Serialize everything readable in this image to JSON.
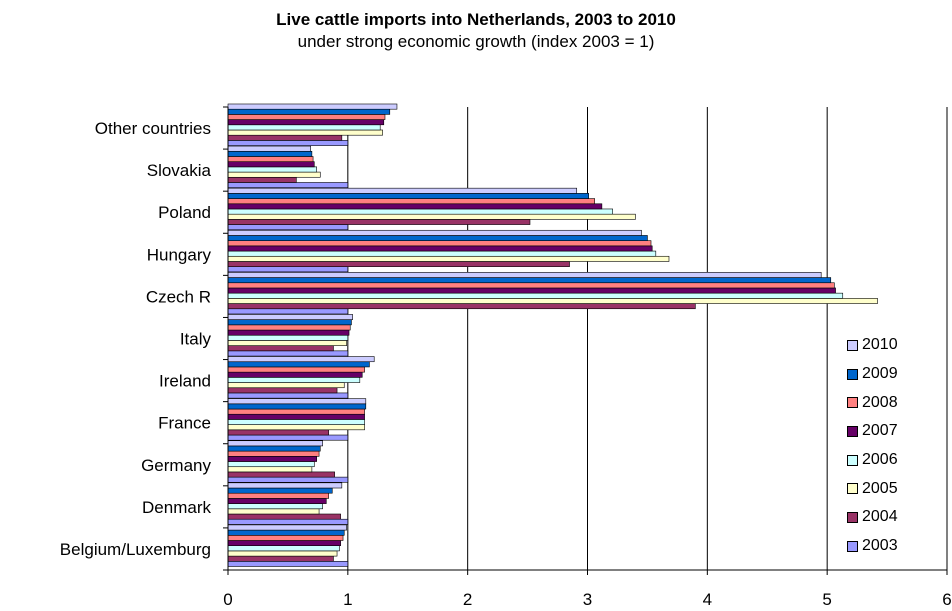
{
  "chart_data": {
    "type": "bar",
    "orientation": "horizontal",
    "title": "Live cattle imports into Netherlands, 2003 to 2010",
    "subtitle": "under strong economic growth (index 2003 = 1)",
    "xlabel": "",
    "ylabel": "",
    "xlim": [
      0,
      6
    ],
    "x_ticks": [
      "0",
      "1",
      "2",
      "3",
      "4",
      "5",
      "6"
    ],
    "grid": "vertical",
    "legend_position": "right",
    "categories": [
      "Belgium/Luxemburg",
      "Denmark",
      "Germany",
      "France",
      "Ireland",
      "Italy",
      "Czech R",
      "Hungary",
      "Poland",
      "Slovakia",
      "Other countries"
    ],
    "series": [
      {
        "name": "2003",
        "color": "#9999ff",
        "values": [
          1,
          1,
          1,
          1,
          1,
          1,
          1,
          1,
          1,
          1,
          1
        ]
      },
      {
        "name": "2004",
        "color": "#993366",
        "values": [
          0.88,
          0.94,
          0.89,
          0.84,
          0.91,
          0.88,
          3.9,
          2.85,
          2.52,
          0.57,
          0.95
        ]
      },
      {
        "name": "2005",
        "color": "#ffffcc",
        "values": [
          0.91,
          0.76,
          0.7,
          1.14,
          0.97,
          0.99,
          5.42,
          3.68,
          3.4,
          0.77,
          1.29
        ]
      },
      {
        "name": "2006",
        "color": "#ccffff",
        "values": [
          0.93,
          0.79,
          0.72,
          1.14,
          1.1,
          1,
          5.13,
          3.57,
          3.21,
          0.74,
          1.27
        ]
      },
      {
        "name": "2007",
        "color": "#660066",
        "values": [
          0.94,
          0.82,
          0.74,
          1.14,
          1.12,
          1.01,
          5.07,
          3.54,
          3.12,
          0.72,
          1.3
        ]
      },
      {
        "name": "2008",
        "color": "#ff8080",
        "values": [
          0.96,
          0.84,
          0.76,
          1.14,
          1.14,
          1.02,
          5.06,
          3.53,
          3.06,
          0.71,
          1.31
        ]
      },
      {
        "name": "2009",
        "color": "#0066cc",
        "values": [
          0.97,
          0.87,
          0.77,
          1.15,
          1.18,
          1.03,
          5.03,
          3.5,
          3.01,
          0.7,
          1.35
        ]
      },
      {
        "name": "2010",
        "color": "#ccccff",
        "values": [
          0.99,
          0.95,
          0.79,
          1.15,
          1.22,
          1.04,
          4.95,
          3.45,
          2.91,
          0.69,
          1.41
        ]
      }
    ]
  },
  "legend": [
    {
      "name": "2010",
      "color": "#ccccff"
    },
    {
      "name": "2009",
      "color": "#0066cc"
    },
    {
      "name": "2008",
      "color": "#ff8080"
    },
    {
      "name": "2007",
      "color": "#660066"
    },
    {
      "name": "2006",
      "color": "#ccffff"
    },
    {
      "name": "2005",
      "color": "#ffffcc"
    },
    {
      "name": "2004",
      "color": "#993366"
    },
    {
      "name": "2003",
      "color": "#9999ff"
    }
  ]
}
